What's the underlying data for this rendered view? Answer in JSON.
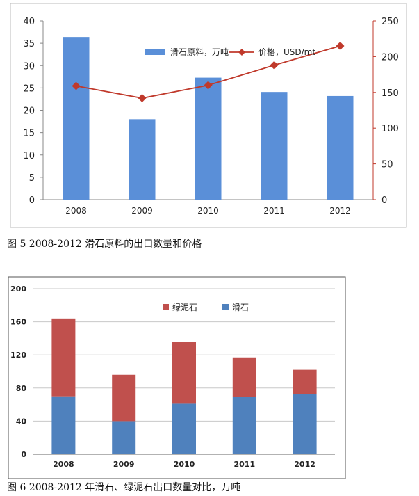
{
  "captions": {
    "fig5": "图 5   2008-2012 滑石原料的出口数量和价格",
    "fig6": "图 6 2008-2012 年滑石、绿泥石出口数量对比，万吨"
  },
  "chart_data": [
    {
      "type": "bar",
      "categories": [
        "2008",
        "2009",
        "2010",
        "2011",
        "2012"
      ],
      "series": [
        {
          "name": "滑石原料，万吨",
          "type": "bar",
          "axis": "left",
          "color": "#5a8fd8",
          "values": [
            36.4,
            18.0,
            27.3,
            24.1,
            23.2
          ]
        },
        {
          "name": "价格，USD/mt",
          "type": "line",
          "axis": "right",
          "color": "#c0392b",
          "values": [
            159,
            142,
            160,
            188,
            215
          ]
        }
      ],
      "ylim": [
        0,
        40
      ],
      "yticks": [
        0,
        5,
        10,
        15,
        20,
        25,
        30,
        35,
        40
      ],
      "y2lim": [
        0,
        250
      ],
      "y2ticks": [
        0,
        50,
        100,
        150,
        200,
        250
      ],
      "grid": false,
      "legend": "top-right"
    },
    {
      "type": "bar",
      "stacked": true,
      "categories": [
        "2008",
        "2009",
        "2010",
        "2011",
        "2012"
      ],
      "series": [
        {
          "name": "滑石",
          "color": "#4f81bd",
          "values": [
            70,
            40,
            61,
            69,
            73
          ]
        },
        {
          "name": "绿泥石",
          "color": "#c0504d",
          "values": [
            94,
            56,
            75,
            48,
            29
          ]
        }
      ],
      "ylim": [
        0,
        200
      ],
      "yticks": [
        0,
        40,
        80,
        120,
        160,
        200
      ],
      "grid": true,
      "legend": "top"
    }
  ]
}
